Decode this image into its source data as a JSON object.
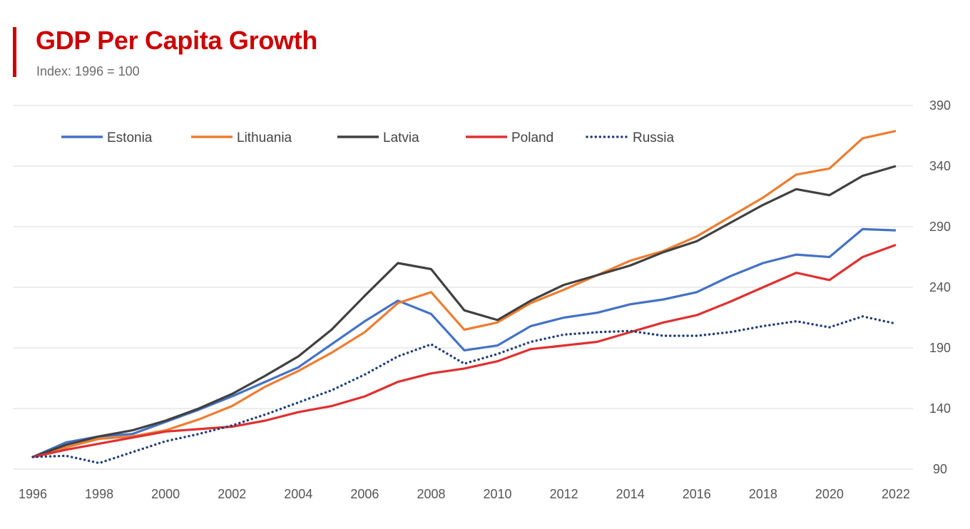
{
  "header": {
    "title": "GDP Per Capita Growth",
    "subtitle": "Index: 1996 = 100",
    "accent_color": "#cc0000"
  },
  "chart_data": {
    "type": "line",
    "title": "GDP Per Capita Growth",
    "subtitle": "Index: 1996 = 100",
    "xlabel": "",
    "ylabel": "",
    "x": [
      1996,
      1997,
      1998,
      1999,
      2000,
      2001,
      2002,
      2003,
      2004,
      2005,
      2006,
      2007,
      2008,
      2009,
      2010,
      2011,
      2012,
      2013,
      2014,
      2015,
      2016,
      2017,
      2018,
      2019,
      2020,
      2021,
      2022
    ],
    "x_ticks": [
      1996,
      1998,
      2000,
      2002,
      2004,
      2006,
      2008,
      2010,
      2012,
      2014,
      2016,
      2018,
      2020,
      2022
    ],
    "y_ticks": [
      90,
      140,
      190,
      240,
      290,
      340,
      390
    ],
    "xlim": [
      1996,
      2022
    ],
    "ylim": [
      90,
      390
    ],
    "y_axis_position": "right",
    "grid": "horizontal",
    "legend_position": "top",
    "series": [
      {
        "name": "Estonia",
        "color": "#4472c4",
        "style": "solid",
        "values": [
          100,
          112,
          117,
          119,
          129,
          139,
          150,
          162,
          174,
          193,
          212,
          229,
          218,
          188,
          192,
          208,
          215,
          219,
          226,
          230,
          236,
          249,
          260,
          267,
          265,
          288,
          287
        ]
      },
      {
        "name": "Lithuania",
        "color": "#ed7d31",
        "style": "solid",
        "values": [
          100,
          108,
          115,
          117,
          122,
          131,
          142,
          158,
          171,
          186,
          203,
          227,
          236,
          205,
          211,
          227,
          238,
          250,
          262,
          270,
          282,
          298,
          314,
          333,
          338,
          363,
          369
        ]
      },
      {
        "name": "Latvia",
        "color": "#404040",
        "style": "solid",
        "values": [
          100,
          110,
          117,
          122,
          130,
          140,
          152,
          167,
          183,
          205,
          233,
          260,
          255,
          221,
          213,
          229,
          242,
          250,
          258,
          269,
          278,
          293,
          308,
          321,
          316,
          332,
          340
        ]
      },
      {
        "name": "Poland",
        "color": "#e03030",
        "style": "solid",
        "values": [
          100,
          106,
          111,
          116,
          121,
          123,
          125,
          130,
          137,
          142,
          150,
          162,
          169,
          173,
          179,
          189,
          192,
          195,
          203,
          211,
          217,
          228,
          240,
          252,
          246,
          265,
          275
        ]
      },
      {
        "name": "Russia",
        "color": "#1f3d7a",
        "style": "dotted",
        "values": [
          100,
          101,
          95,
          104,
          113,
          119,
          126,
          135,
          145,
          155,
          168,
          183,
          193,
          177,
          185,
          195,
          201,
          203,
          204,
          200,
          200,
          203,
          208,
          212,
          207,
          216,
          210
        ]
      }
    ]
  }
}
